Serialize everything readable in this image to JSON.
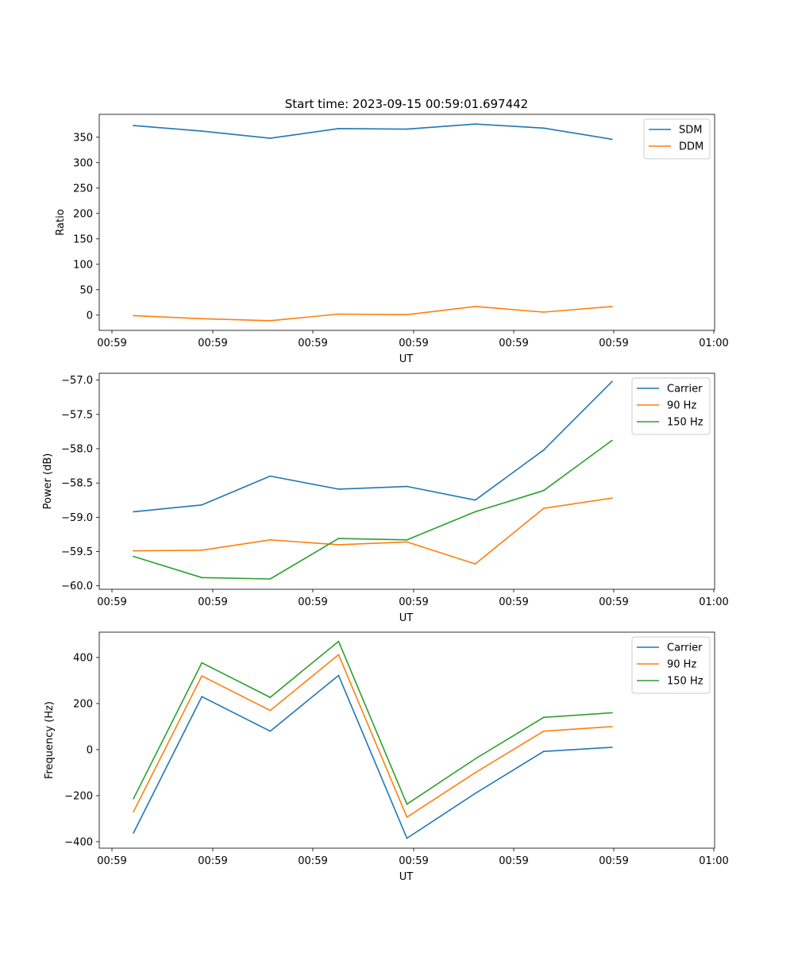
{
  "figure": {
    "title": "Start time: 2023-09-15 00:59:01.697442"
  },
  "chart_data": [
    {
      "type": "line",
      "title": "Start time: 2023-09-15 00:59:01.697442",
      "xlabel": "UT",
      "ylabel": "Ratio",
      "x_tick_labels": [
        "00:59",
        "00:59",
        "00:59",
        "00:59",
        "00:59",
        "00:59",
        "01:00"
      ],
      "x": [
        1,
        2,
        3,
        4,
        5,
        6,
        7,
        8
      ],
      "xlim": [
        0.5,
        9.5
      ],
      "ylim": [
        -30,
        395
      ],
      "yticks": [
        0,
        50,
        100,
        150,
        200,
        250,
        300,
        350
      ],
      "legend": "top-right",
      "series": [
        {
          "name": "SDM",
          "color": "#1f77b4",
          "values": [
            373,
            362,
            348,
            367,
            366,
            376,
            368,
            346
          ]
        },
        {
          "name": "DDM",
          "color": "#ff7f0e",
          "values": [
            -1,
            -7,
            -11,
            2,
            1,
            17,
            6,
            17
          ]
        }
      ]
    },
    {
      "type": "line",
      "xlabel": "UT",
      "ylabel": "Power (dB)",
      "x_tick_labels": [
        "00:59",
        "00:59",
        "00:59",
        "00:59",
        "00:59",
        "00:59",
        "01:00"
      ],
      "x": [
        1,
        2,
        3,
        4,
        5,
        6,
        7,
        8
      ],
      "xlim": [
        0.5,
        9.5
      ],
      "ylim": [
        -60.05,
        -56.9
      ],
      "yticks": [
        -60.0,
        -59.5,
        -59.0,
        -58.5,
        -58.0,
        -57.5,
        -57.0
      ],
      "ytick_labels": [
        "−60.0",
        "−59.5",
        "−59.0",
        "−58.5",
        "−58.0",
        "−57.5",
        "−57.0"
      ],
      "legend": "top-right",
      "series": [
        {
          "name": "Carrier",
          "color": "#1f77b4",
          "values": [
            -58.92,
            -58.82,
            -58.4,
            -58.59,
            -58.55,
            -58.75,
            -58.02,
            -57.02
          ]
        },
        {
          "name": "90 Hz",
          "color": "#ff7f0e",
          "values": [
            -59.49,
            -59.48,
            -59.33,
            -59.4,
            -59.36,
            -59.68,
            -58.87,
            -58.72
          ]
        },
        {
          "name": "150 Hz",
          "color": "#2ca02c",
          "values": [
            -59.57,
            -59.88,
            -59.9,
            -59.31,
            -59.33,
            -58.92,
            -58.61,
            -57.88
          ]
        }
      ]
    },
    {
      "type": "line",
      "xlabel": "UT",
      "ylabel": "Frequency (Hz)",
      "x_tick_labels": [
        "00:59",
        "00:59",
        "00:59",
        "00:59",
        "00:59",
        "00:59",
        "01:00"
      ],
      "x": [
        1,
        2,
        3,
        4,
        5,
        6,
        7,
        8
      ],
      "xlim": [
        0.5,
        9.5
      ],
      "ylim": [
        -428,
        510
      ],
      "yticks": [
        -400,
        -200,
        0,
        200,
        400
      ],
      "ytick_labels": [
        "−400",
        "−200",
        "0",
        "200",
        "400"
      ],
      "legend": "top-right",
      "series": [
        {
          "name": "Carrier",
          "color": "#1f77b4",
          "values": [
            -362,
            230,
            80,
            322,
            -385,
            -190,
            -8,
            10
          ]
        },
        {
          "name": "90 Hz",
          "color": "#ff7f0e",
          "values": [
            -270,
            320,
            170,
            412,
            -293,
            -100,
            80,
            100
          ]
        },
        {
          "name": "150 Hz",
          "color": "#2ca02c",
          "values": [
            -213,
            377,
            227,
            470,
            -237,
            -40,
            140,
            160
          ]
        }
      ]
    }
  ]
}
